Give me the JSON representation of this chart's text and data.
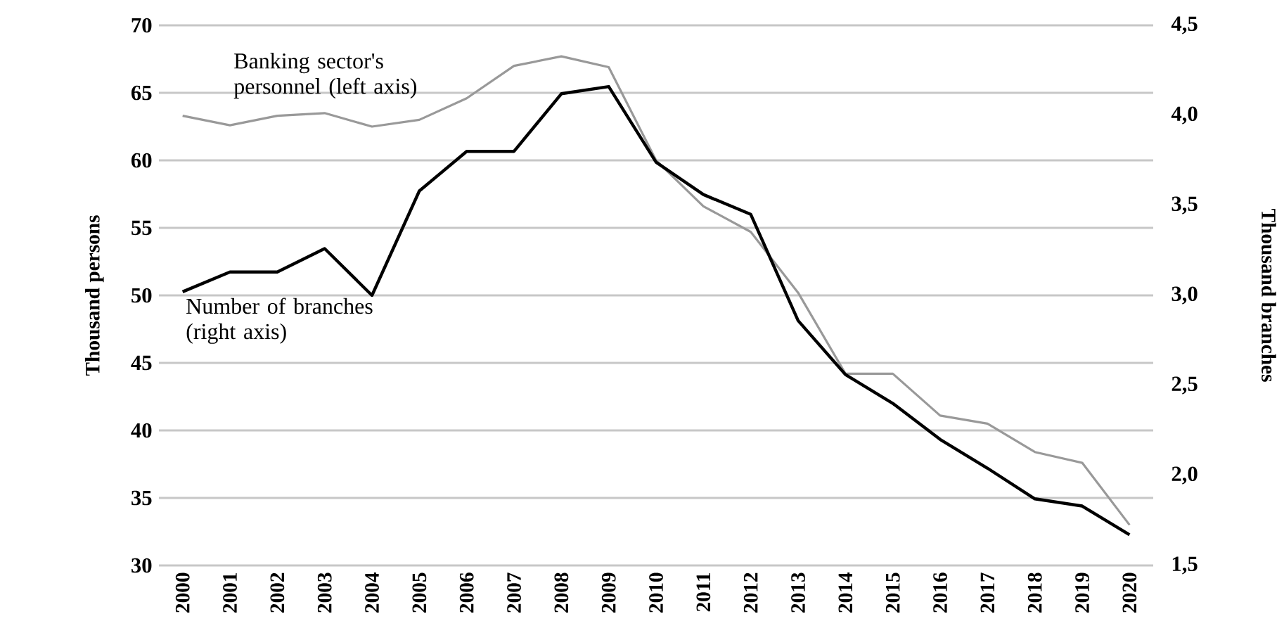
{
  "chart_data": {
    "type": "line",
    "categories": [
      "2000",
      "2001",
      "2002",
      "2003",
      "2004",
      "2005",
      "2006",
      "2007",
      "2008",
      "2009",
      "2010",
      "2011",
      "2012",
      "2013",
      "2014",
      "2015",
      "2016",
      "2017",
      "2018",
      "2019",
      "2020"
    ],
    "series": [
      {
        "name": "Banking sector's personnel (left axis)",
        "color": "#999999",
        "values": [
          63.3,
          62.6,
          63.3,
          63.5,
          62.5,
          63.0,
          64.6,
          67.0,
          67.7,
          66.9,
          60.0,
          56.6,
          54.7,
          50.2,
          44.2,
          44.2,
          41.1,
          40.5,
          38.4,
          37.6,
          33.0
        ]
      },
      {
        "name": "Number of branches (right axis)",
        "color": "#000000",
        "axis": "y2",
        "values": [
          3.02,
          3.13,
          3.13,
          3.26,
          3.0,
          3.58,
          3.8,
          3.8,
          4.12,
          4.16,
          3.74,
          3.56,
          3.45,
          2.86,
          2.56,
          2.4,
          2.2,
          2.04,
          1.87,
          1.83,
          1.67
        ]
      }
    ],
    "ylabel": "Thousand persons",
    "y2label": "Thousand branches",
    "ylim": [
      30,
      70
    ],
    "yticks": [
      30,
      35,
      40,
      45,
      50,
      55,
      60,
      65,
      70
    ],
    "y2lim": [
      1.5,
      4.5
    ],
    "y2ticks": [
      {
        "value": 1.5,
        "label": "1,5"
      },
      {
        "value": 2.0,
        "label": "2,0"
      },
      {
        "value": 2.5,
        "label": "2,5"
      },
      {
        "value": 3.0,
        "label": "3,0"
      },
      {
        "value": 3.5,
        "label": "3,5"
      },
      {
        "value": 4.0,
        "label": "4,0"
      },
      {
        "value": 4.5,
        "label": "4,5"
      }
    ],
    "grid": "y",
    "line_style": "solid",
    "marker": "none"
  }
}
